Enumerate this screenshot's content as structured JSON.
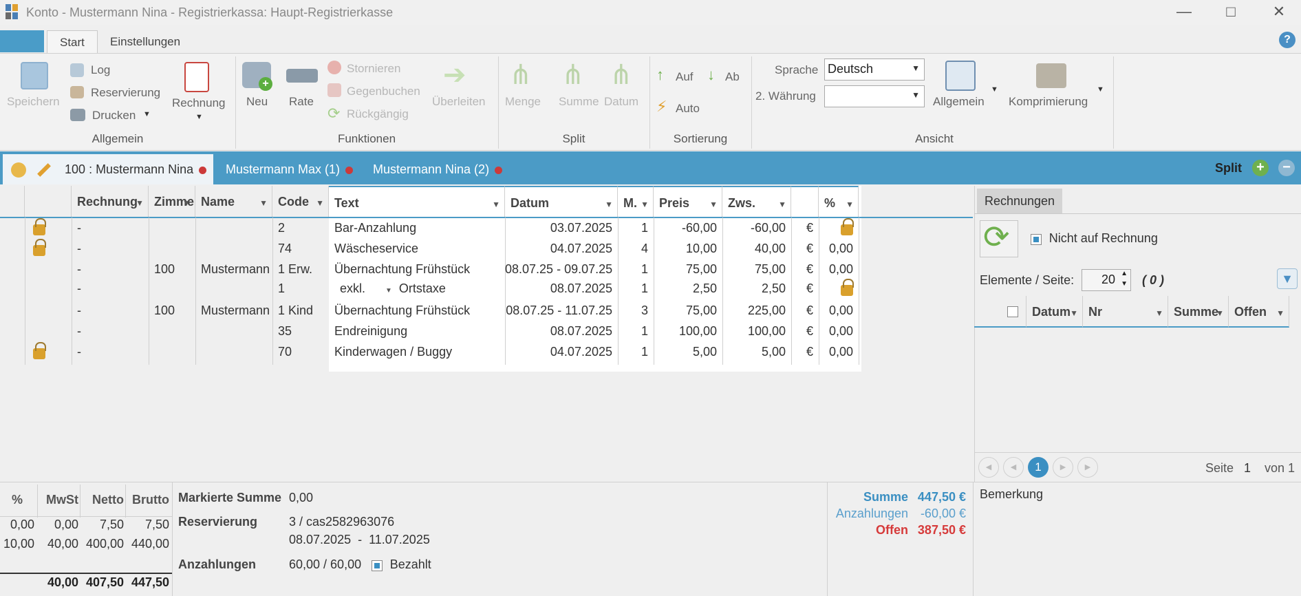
{
  "window": {
    "title": "Konto - Mustermann Nina - Registrierkassa: Haupt-Registrierkasse"
  },
  "ribbon_tabs": [
    {
      "label": "Start"
    },
    {
      "label": "Einstellungen"
    }
  ],
  "ribbon": {
    "allgemein": {
      "label": "Allgemein",
      "save": "Speichern",
      "log": "Log",
      "reservierung": "Reservierung",
      "drucken": "Drucken",
      "rechnung": "Rechnung"
    },
    "funktionen": {
      "label": "Funktionen",
      "neu": "Neu",
      "rate": "Rate",
      "stornieren": "Stornieren",
      "gegenbuchen": "Gegenbuchen",
      "rueckgaengig": "Rückgängig",
      "ueberleiten": "Überleiten"
    },
    "split": {
      "label": "Split",
      "menge": "Menge",
      "summe": "Summe",
      "datum": "Datum"
    },
    "sortierung": {
      "label": "Sortierung",
      "auf": "Auf",
      "ab": "Ab",
      "auto": "Auto"
    },
    "ansicht": {
      "label": "Ansicht",
      "sprache_label": "Sprache",
      "sprache_value": "Deutsch",
      "waehrung_label": "2. Währung",
      "waehrung_value": "",
      "allgemein": "Allgemein",
      "komprimierung": "Komprimierung"
    }
  },
  "account_tabs": [
    {
      "label": "100 :  Mustermann Nina"
    },
    {
      "label": "Mustermann Max (1)"
    },
    {
      "label": "Mustermann Nina (2)"
    }
  ],
  "split_label": "Split",
  "table": {
    "headers": {
      "rechnung": "Rechnung",
      "zimmer": "Zimmer",
      "name": "Name",
      "code": "Code",
      "text": "Text",
      "datum": "Datum",
      "m": "M.",
      "preis": "Preis",
      "zws": "Zws.",
      "pct": "%"
    },
    "rows": [
      {
        "locked": true,
        "rechnung": "-",
        "zimmer": "",
        "name": "",
        "code": "2",
        "text": "Bar-Anzahlung",
        "datum": "03.07.2025",
        "m": "1",
        "preis": "-60,00",
        "zws": "-60,00",
        "cur": "€",
        "pct": "",
        "pct_lock": true
      },
      {
        "locked": true,
        "rechnung": "-",
        "zimmer": "",
        "name": "",
        "code": "74",
        "text": "Wäscheservice",
        "datum": "04.07.2025",
        "m": "4",
        "preis": "10,00",
        "zws": "40,00",
        "cur": "€",
        "pct": "0,00",
        "pct_lock": false
      },
      {
        "locked": false,
        "rechnung": "-",
        "zimmer": "100",
        "name": "Mustermann",
        "code": "1 Erw.",
        "text": "Übernachtung Frühstück",
        "datum": "08.07.25 - 09.07.25",
        "m": "1",
        "preis": "75,00",
        "zws": "75,00",
        "cur": "€",
        "pct": "0,00",
        "pct_lock": false
      },
      {
        "locked": false,
        "rechnung": "-",
        "zimmer": "",
        "name": "",
        "code": "1",
        "text": "Ortstaxe",
        "text_prefix": "exkl.",
        "datum": "08.07.2025",
        "m": "1",
        "preis": "2,50",
        "zws": "2,50",
        "cur": "€",
        "pct": "",
        "pct_lock": true
      },
      {
        "locked": false,
        "rechnung": "-",
        "zimmer": "100",
        "name": "Mustermann",
        "code": "1 Kind",
        "text": "Übernachtung Frühstück",
        "datum": "08.07.25 - 11.07.25",
        "m": "3",
        "preis": "75,00",
        "zws": "225,00",
        "cur": "€",
        "pct": "0,00",
        "pct_lock": false
      },
      {
        "locked": false,
        "rechnung": "-",
        "zimmer": "",
        "name": "",
        "code": "35",
        "text": "Endreinigung",
        "datum": "08.07.2025",
        "m": "1",
        "preis": "100,00",
        "zws": "100,00",
        "cur": "€",
        "pct": "0,00",
        "pct_lock": false
      },
      {
        "locked": true,
        "rechnung": "-",
        "zimmer": "",
        "name": "",
        "code": "70",
        "text": "Kinderwagen / Buggy",
        "datum": "04.07.2025",
        "m": "1",
        "preis": "5,00",
        "zws": "5,00",
        "cur": "€",
        "pct": "0,00",
        "pct_lock": false
      }
    ]
  },
  "right_panel": {
    "tab": "Rechnungen",
    "nicht_auf_rechnung": "Nicht auf Rechnung",
    "elemente_label": "Elemente / Seite:",
    "elemente_value": "20",
    "count": "( 0 )",
    "headers": {
      "datum": "Datum",
      "nr": "Nr",
      "summe": "Summe",
      "offen": "Offen"
    },
    "page_current": "1",
    "seite_label": "Seite",
    "seite_value": "1",
    "von_label": "von 1",
    "bemerkung": "Bemerkung"
  },
  "vat": {
    "headers": {
      "pct": "%",
      "mwst": "MwSt",
      "netto": "Netto",
      "brutto": "Brutto"
    },
    "rows": [
      {
        "pct": "0,00",
        "mwst": "0,00",
        "netto": "7,50",
        "brutto": "7,50"
      },
      {
        "pct": "10,00",
        "mwst": "40,00",
        "netto": "400,00",
        "brutto": "440,00"
      }
    ],
    "totals": {
      "mwst": "40,00",
      "netto": "407,50",
      "brutto": "447,50"
    }
  },
  "summary": {
    "markierte_label": "Markierte Summe",
    "markierte_value": "0,00",
    "reservierung_label": "Reservierung",
    "reservierung_value": "3 / cas2582963076",
    "reservierung_dates": "08.07.2025  -  11.07.2025",
    "anzahlungen_label": "Anzahlungen",
    "anzahlungen_value": "60,00 / 60,00",
    "bezahlt": "Bezahlt"
  },
  "totals": {
    "summe_label": "Summe",
    "summe_value": "447,50 €",
    "anzahlungen_label": "Anzahlungen",
    "anzahlungen_value": "-60,00 €",
    "offen_label": "Offen",
    "offen_value": "387,50 €",
    "colors": {
      "summe": "#3a8fc2",
      "anzahlungen": "#5a9fcc",
      "offen": "#d63a3a"
    }
  }
}
